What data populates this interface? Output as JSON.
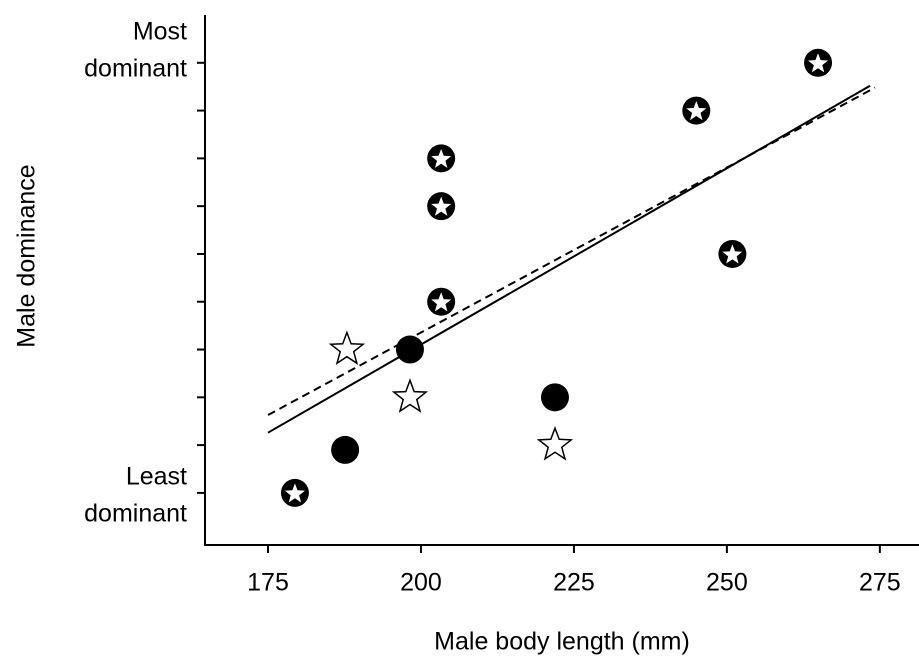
{
  "chart_data": {
    "type": "scatter",
    "x_label": "Male body length (mm)",
    "y_label": "Male dominance",
    "xlim": [
      164.7,
      281.4
    ],
    "xticks": [
      175,
      200,
      225,
      250,
      275
    ],
    "ylim": [
      -0.09,
      11.0
    ],
    "yticks": [
      {
        "value": 1,
        "label": "Least dominant"
      },
      {
        "value": 2,
        "label": null
      },
      {
        "value": 3,
        "label": null
      },
      {
        "value": 4,
        "label": null
      },
      {
        "value": 5,
        "label": null
      },
      {
        "value": 6,
        "label": null
      },
      {
        "value": 7,
        "label": null
      },
      {
        "value": 8,
        "label": null
      },
      {
        "value": 9,
        "label": null
      },
      {
        "value": 10,
        "label": "Most dominant"
      }
    ],
    "series": [
      {
        "marker": "star-circle",
        "color": "#000000",
        "x": [
          179.4,
          203.3,
          203.3,
          203.3,
          245,
          250.9,
          264.9
        ],
        "values": [
          1,
          5,
          7,
          8,
          9,
          6,
          10
        ]
      },
      {
        "marker": "circle",
        "color": "#000000",
        "x": [
          187.6,
          198.2,
          221.9
        ],
        "values": [
          1.9,
          4,
          3
        ]
      },
      {
        "marker": "star",
        "color": "#000000",
        "x": [
          187.9,
          198.2,
          221.9
        ],
        "values": [
          4,
          3,
          2
        ]
      }
    ],
    "lines": [
      {
        "style": "solid",
        "x": [
          175,
          273.4
        ],
        "values": [
          2.26,
          9.52
        ]
      },
      {
        "style": "dashed",
        "x": [
          175,
          274.2
        ],
        "values": [
          2.63,
          9.48
        ]
      }
    ]
  }
}
